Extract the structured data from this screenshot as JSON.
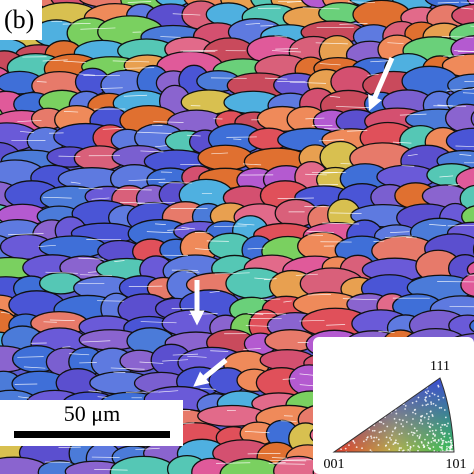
{
  "panel_label": "(b)",
  "scale_bar": {
    "label": "50 μm"
  },
  "ipf_legend": {
    "top": "111",
    "left": "001",
    "right": "101"
  }
}
